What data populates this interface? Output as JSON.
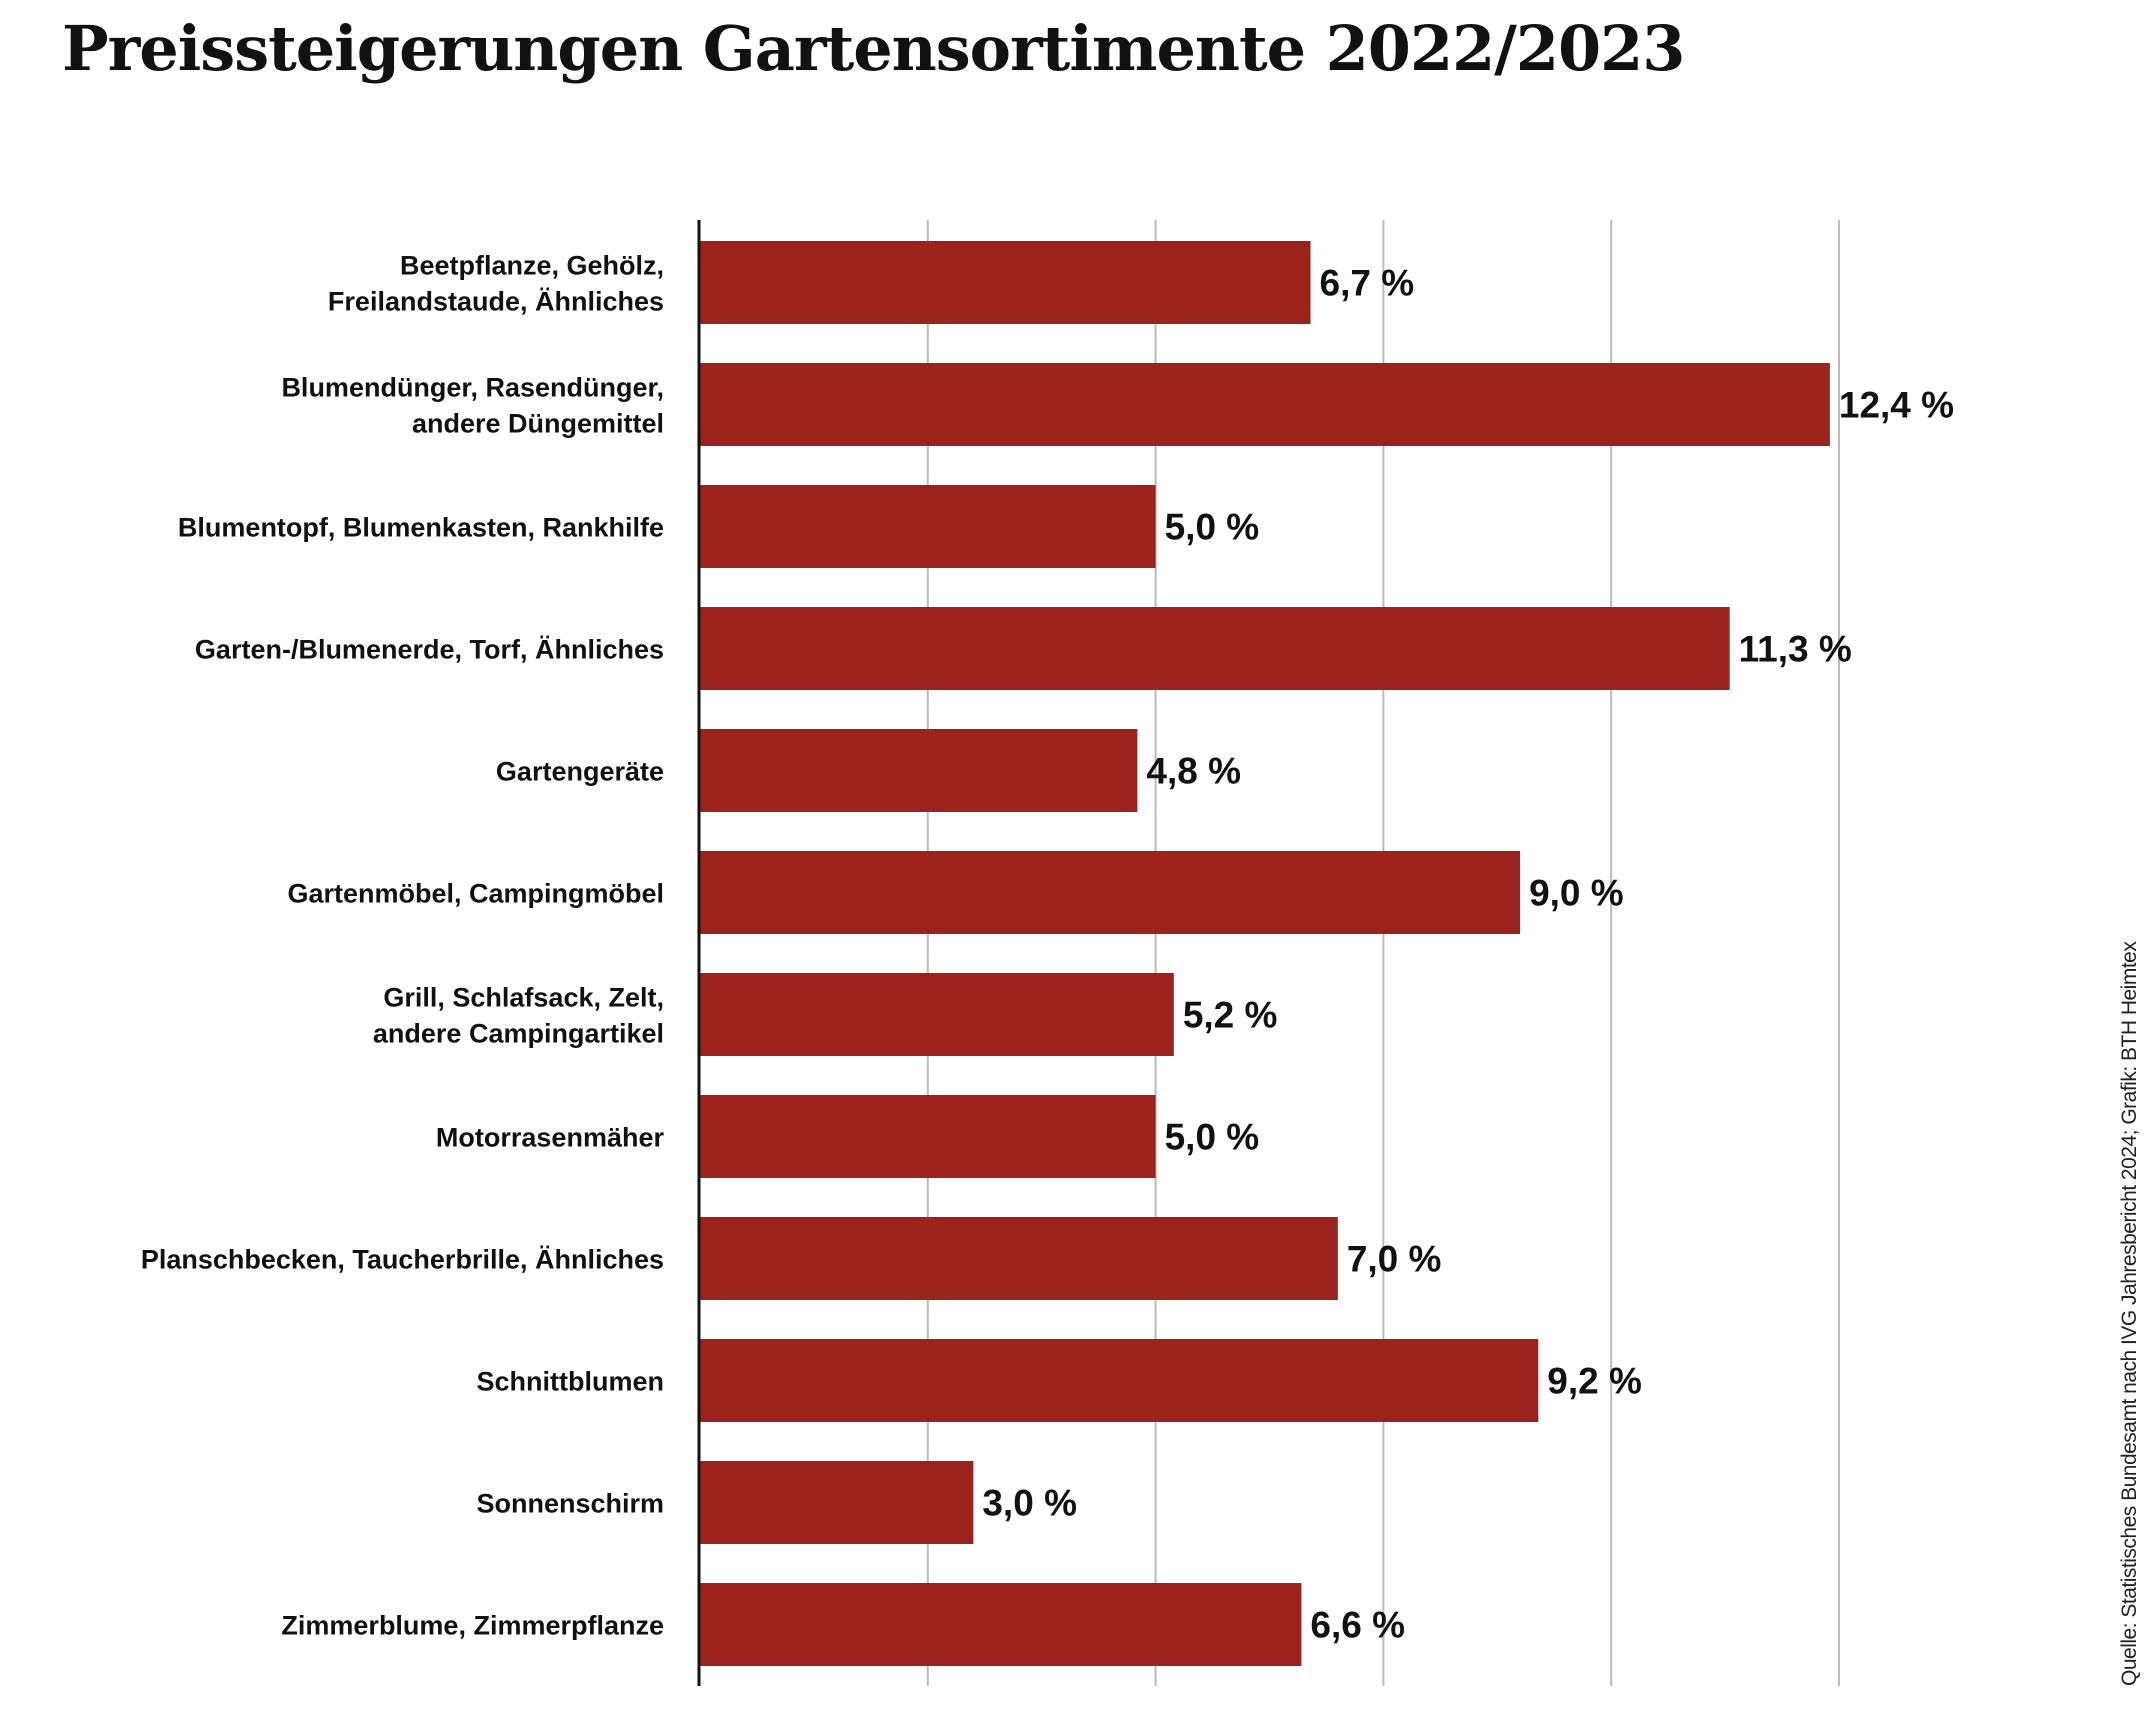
{
  "chart_data": {
    "type": "bar",
    "orientation": "horizontal",
    "title": "Preissteigerungen Gartensortimente 2022/2023",
    "categories": [
      "Beetpflanze, Gehölz,\nFreilandstaude, Ähnliches",
      "Blumendünger, Rasendünger,\nandere Düngemittel",
      "Blumentopf, Blumenkasten, Rankhilfe",
      "Garten-/Blumenerde, Torf, Ähnliches",
      "Gartengeräte",
      "Gartenmöbel, Campingmöbel",
      "Grill, Schlafsack, Zelt,\nandere Campingartikel",
      "Motorrasenmäher",
      "Planschbecken, Taucherbrille, Ähnliches",
      "Schnittblumen",
      "Sonnenschirm",
      "Zimmerblume, Zimmerpflanze"
    ],
    "values": [
      6.7,
      12.4,
      5.0,
      11.3,
      4.8,
      9.0,
      5.2,
      5.0,
      7.0,
      9.2,
      3.0,
      6.6
    ],
    "value_labels": [
      "6,7 %",
      "12,4 %",
      "5,0 %",
      "11,3 %",
      "4,8 %",
      "9,0 %",
      "5,2 %",
      "5,0 %",
      "7,0 %",
      "9,2 %",
      "3,0 %",
      "6,6 %"
    ],
    "xlim": [
      0,
      12.5
    ],
    "gridlines": [
      2.5,
      5,
      7.5,
      10,
      12.5
    ],
    "grid": true,
    "bar_color": "#9c231d",
    "grid_color": "#bbbbbb",
    "source": "Quelle: Statistisches Bundesamt nach IVG Jahresbericht 2024; Grafik: BTH Heimtex"
  }
}
